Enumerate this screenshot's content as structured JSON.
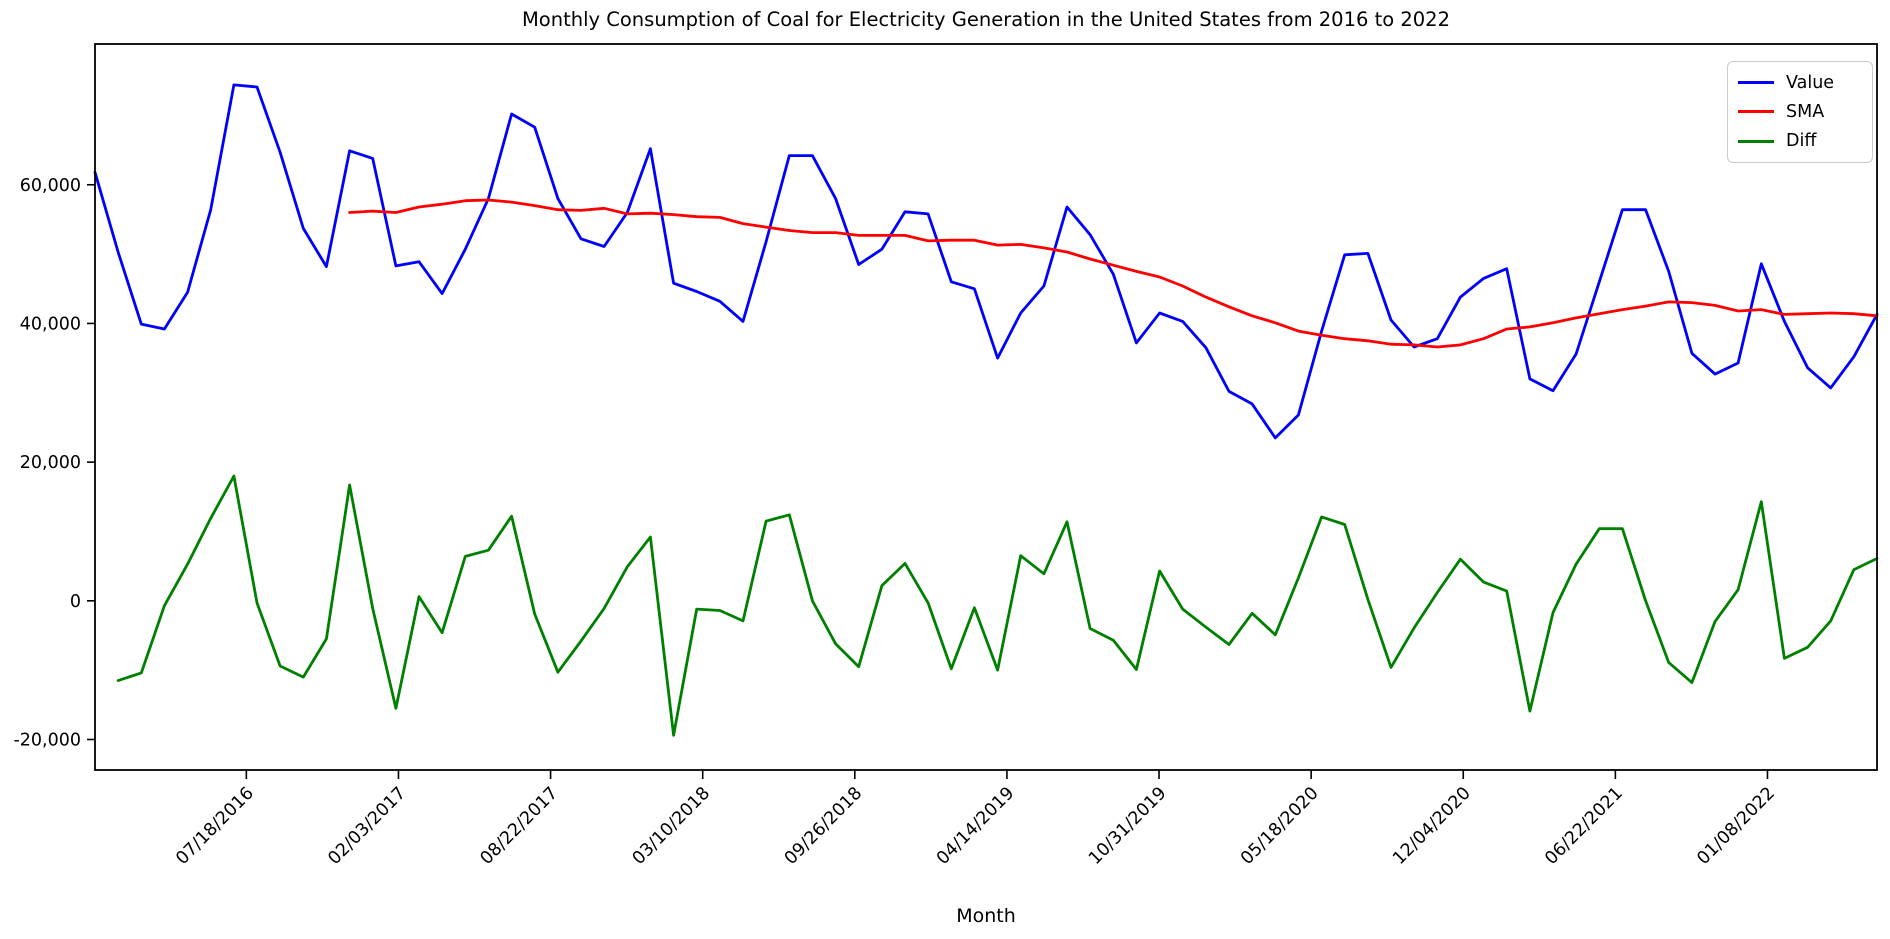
{
  "title": "Monthly Consumption of Coal for Electricity Generation in the United States from 2016 to 2022",
  "xlabel": "Month",
  "legend": {
    "position": "upper right",
    "items": [
      {
        "label": "Value",
        "color": "#0000ff"
      },
      {
        "label": "SMA",
        "color": "#ff0000"
      },
      {
        "label": "Diff",
        "color": "#008000"
      }
    ]
  },
  "axes": {
    "y_tick_labels": [
      "-20,000",
      "0",
      "20,000",
      "40,000",
      "60,000"
    ],
    "y_tick_values": [
      -20000,
      0,
      20000,
      40000,
      60000
    ],
    "x_tick_labels": [
      "07/18/2016",
      "02/03/2017",
      "08/22/2017",
      "03/10/2018",
      "09/26/2018",
      "04/14/2019",
      "10/31/2019",
      "05/18/2020",
      "12/04/2020",
      "06/22/2021",
      "01/08/2022"
    ]
  },
  "chart_data": {
    "type": "line",
    "title": "Monthly Consumption of Coal for Electricity Generation in the United States from 2016 to 2022",
    "xlabel": "Month",
    "ylabel": "",
    "x_range": [
      "2016-01-01",
      "2022-06-01"
    ],
    "ylim": [
      -24400,
      80300
    ],
    "grid": false,
    "legend_position": "upper right",
    "x": [
      "2016-01",
      "2016-02",
      "2016-03",
      "2016-04",
      "2016-05",
      "2016-06",
      "2016-07",
      "2016-08",
      "2016-09",
      "2016-10",
      "2016-11",
      "2016-12",
      "2017-01",
      "2017-02",
      "2017-03",
      "2017-04",
      "2017-05",
      "2017-06",
      "2017-07",
      "2017-08",
      "2017-09",
      "2017-10",
      "2017-11",
      "2017-12",
      "2018-01",
      "2018-02",
      "2018-03",
      "2018-04",
      "2018-05",
      "2018-06",
      "2018-07",
      "2018-08",
      "2018-09",
      "2018-10",
      "2018-11",
      "2018-12",
      "2019-01",
      "2019-02",
      "2019-03",
      "2019-04",
      "2019-05",
      "2019-06",
      "2019-07",
      "2019-08",
      "2019-09",
      "2019-10",
      "2019-11",
      "2019-12",
      "2020-01",
      "2020-02",
      "2020-03",
      "2020-04",
      "2020-05",
      "2020-06",
      "2020-07",
      "2020-08",
      "2020-09",
      "2020-10",
      "2020-11",
      "2020-12",
      "2021-01",
      "2021-02",
      "2021-03",
      "2021-04",
      "2021-05",
      "2021-06",
      "2021-07",
      "2021-08",
      "2021-09",
      "2021-10",
      "2021-11",
      "2021-12",
      "2022-01",
      "2022-02",
      "2022-03",
      "2022-04",
      "2022-05",
      "2022-06"
    ],
    "series": [
      {
        "name": "Value",
        "color": "#0000ff",
        "values": [
          61800,
          50300,
          39900,
          39200,
          44500,
          56400,
          74400,
          74100,
          64700,
          53700,
          48200,
          64900,
          63800,
          48300,
          48900,
          44300,
          50700,
          58000,
          70200,
          68300,
          58000,
          52200,
          51100,
          56000,
          65200,
          45800,
          44600,
          43200,
          40300,
          51800,
          64200,
          64200,
          58000,
          48500,
          50700,
          56100,
          55800,
          46000,
          45000,
          35000,
          41500,
          45400,
          56800,
          52800,
          47100,
          37200,
          41500,
          40300,
          36500,
          30200,
          28400,
          23500,
          26800,
          38900,
          49900,
          50100,
          40500,
          36600,
          37800,
          43800,
          46500,
          47900,
          32000,
          30300,
          35600,
          46000,
          56400,
          56400,
          47500,
          35700,
          32700,
          34300,
          48600,
          40300,
          33600,
          30700,
          35200,
          41300
        ]
      },
      {
        "name": "SMA",
        "color": "#ff0000",
        "values": [
          null,
          null,
          null,
          null,
          null,
          null,
          null,
          null,
          null,
          null,
          null,
          56000,
          56200,
          56000,
          56800,
          57200,
          57700,
          57800,
          57500,
          57000,
          56400,
          56300,
          56600,
          55800,
          55900,
          55700,
          55400,
          55300,
          54400,
          53900,
          53400,
          53100,
          53100,
          52700,
          52700,
          52700,
          51900,
          52000,
          52000,
          51300,
          51400,
          50900,
          50300,
          49300,
          48400,
          47500,
          46700,
          45400,
          43800,
          42400,
          41100,
          40100,
          38900,
          38300,
          37800,
          37500,
          37000,
          36900,
          36600,
          36900,
          37800,
          39200,
          39500,
          40100,
          40800,
          41400,
          42000,
          42500,
          43100,
          43000,
          42600,
          41800,
          42000,
          41300,
          41400,
          41500,
          41400,
          41100
        ]
      },
      {
        "name": "Diff",
        "color": "#008000",
        "values": [
          null,
          -11500,
          -10400,
          -700,
          5300,
          11900,
          18000,
          -300,
          -9400,
          -11000,
          -5500,
          16700,
          -1100,
          -15500,
          600,
          -4600,
          6400,
          7300,
          12200,
          -1900,
          -10300,
          -5800,
          -1100,
          4900,
          9200,
          -19400,
          -1200,
          -1400,
          -2900,
          11500,
          12400,
          0,
          -6200,
          -9500,
          2200,
          5400,
          -300,
          -9800,
          -1000,
          -10000,
          6500,
          3900,
          11400,
          -4000,
          -5700,
          -9900,
          4300,
          -1200,
          -3800,
          -6300,
          -1800,
          -4900,
          3300,
          12100,
          11000,
          200,
          -9600,
          -3900,
          1200,
          6000,
          2700,
          1400,
          -15900,
          -1700,
          5300,
          10400,
          10400,
          0,
          -8900,
          -11800,
          -3000,
          1600,
          14300,
          -8300,
          -6700,
          -2900,
          4500,
          6100
        ]
      }
    ]
  }
}
